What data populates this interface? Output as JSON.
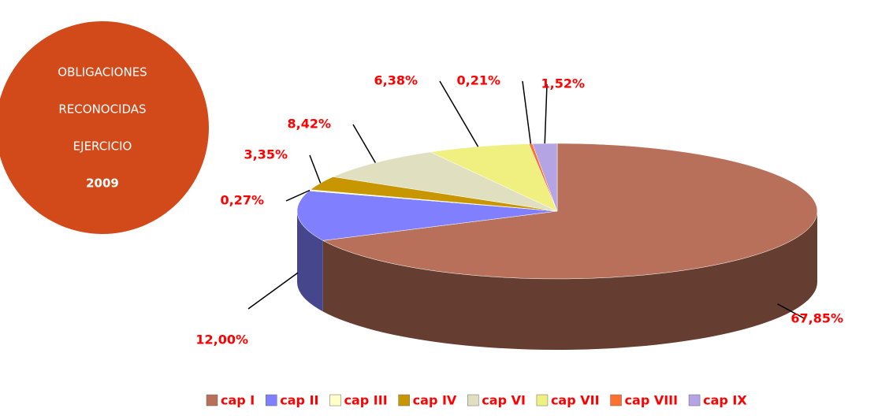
{
  "chart_data": {
    "type": "pie3d",
    "annotations": [
      "OBLIGACIONES",
      "RECONOCIDAS",
      "EJERCICIO",
      "2009"
    ],
    "categories": [
      "cap I",
      "cap II",
      "cap III",
      "cap IV",
      "cap VI",
      "cap VII",
      "cap VIII",
      "cap IX"
    ],
    "values": [
      67.85,
      12.0,
      0.27,
      3.35,
      8.42,
      6.38,
      0.21,
      1.52
    ],
    "value_labels": [
      "67,85%",
      "12,00%",
      "0,27%",
      "3,35%",
      "8,42%",
      "6,38%",
      "0,21%",
      "1,52%"
    ],
    "colors": [
      "#b8705a",
      "#8080ff",
      "#ffffc8",
      "#c89600",
      "#e0e0c0",
      "#f0f080",
      "#ff7030",
      "#b4a4e4"
    ],
    "legend": "bottom"
  }
}
